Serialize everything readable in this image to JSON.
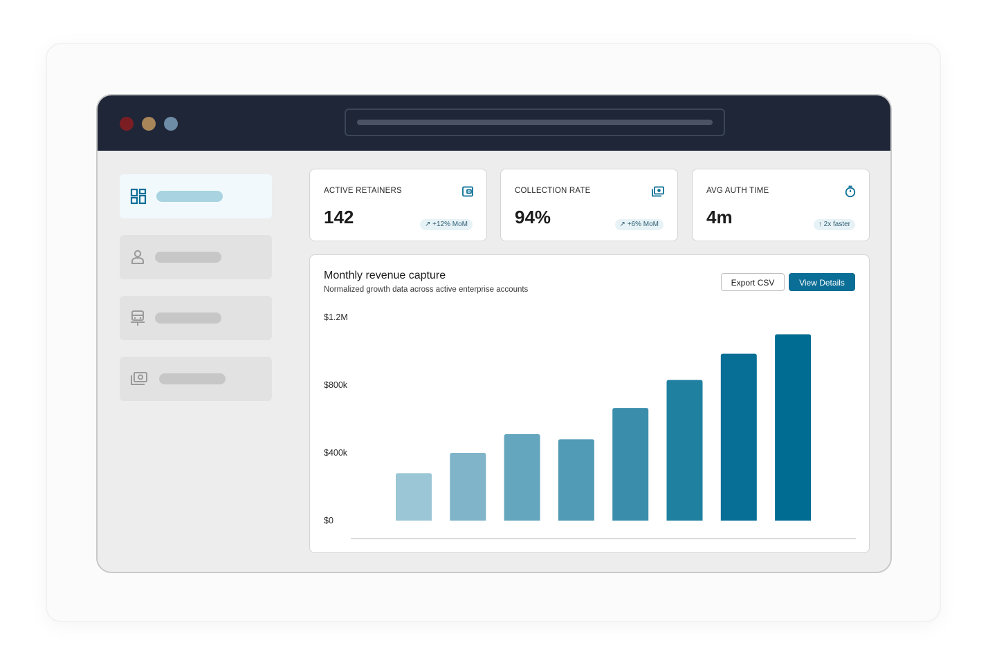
{
  "window": {
    "traffic_lights": [
      "#7b1e24",
      "#a8865a",
      "#6f8ca6"
    ]
  },
  "sidebar": {
    "items": [
      {
        "icon": "dashboard-icon",
        "active": true
      },
      {
        "icon": "user-icon",
        "active": false
      },
      {
        "icon": "vehicle-icon",
        "active": false
      },
      {
        "icon": "money-icon",
        "active": false
      }
    ]
  },
  "stats": [
    {
      "label": "ACTIVE RETAINERS",
      "value": "142",
      "badge": "↗ +12% MoM",
      "icon": "wallet-icon"
    },
    {
      "label": "COLLECTION RATE",
      "value": "94%",
      "badge": "↗ +6% MoM",
      "icon": "cash-icon"
    },
    {
      "label": "AVG AUTH TIME",
      "value": "4m",
      "badge": "↑ 2x faster",
      "icon": "stopwatch-icon"
    }
  ],
  "chart": {
    "title": "Monthly revenue capture",
    "subtitle": "Normalized growth data across active enterprise accounts",
    "export_label": "Export CSV",
    "view_label": "View Details"
  },
  "colors": {
    "accent": "#0a6e96",
    "titlebar": "#1e2638"
  },
  "chart_data": {
    "type": "bar",
    "title": "Monthly revenue capture",
    "subtitle": "Normalized growth data across active enterprise accounts",
    "categories": [
      "",
      "",
      "",
      "",
      "",
      "",
      "",
      ""
    ],
    "values": [
      280000,
      400000,
      510000,
      480000,
      665000,
      830000,
      985000,
      1100000
    ],
    "bar_colors": [
      "#9bc6d6",
      "#7fb4c9",
      "#64a6be",
      "#519bb6",
      "#3a8eac",
      "#1f80a0",
      "#076f95",
      "#006c92"
    ],
    "yticks": [
      "$0",
      "$400k",
      "$800k",
      "$1.2M"
    ],
    "ytick_values": [
      0,
      400000,
      800000,
      1200000
    ],
    "ylim": [
      0,
      1200000
    ],
    "grid": false
  }
}
